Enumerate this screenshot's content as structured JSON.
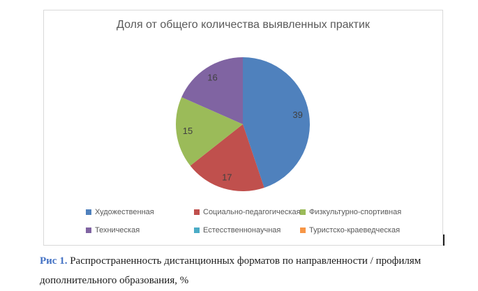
{
  "chart_data": {
    "type": "pie",
    "title": "Доля от общего количества выявленных практик",
    "categories": [
      "Художественная",
      "Социально-педагогическая",
      "Физкультурно-спортивная",
      "Техническая",
      "Естесственнонаучная",
      "Туристско-краеведческая"
    ],
    "values": [
      39,
      17,
      15,
      16,
      0,
      0
    ],
    "colors": [
      "#4F81BD",
      "#C0504D",
      "#9BBB59",
      "#8064A2",
      "#4BACC6",
      "#F79646"
    ],
    "data_labels": [
      39,
      17,
      15,
      16
    ],
    "data_label_color": "#404040",
    "title_color": "#595959",
    "start_angle_deg": 0,
    "direction": "clockwise",
    "legend_position": "bottom",
    "legend_rows": 2,
    "legend_columns": 3
  },
  "caption": {
    "label": "Рис 1.",
    "text": " Распространенность дистанционных форматов по направленности / профилям дополнительного образования, %",
    "label_color": "#4472C4"
  }
}
